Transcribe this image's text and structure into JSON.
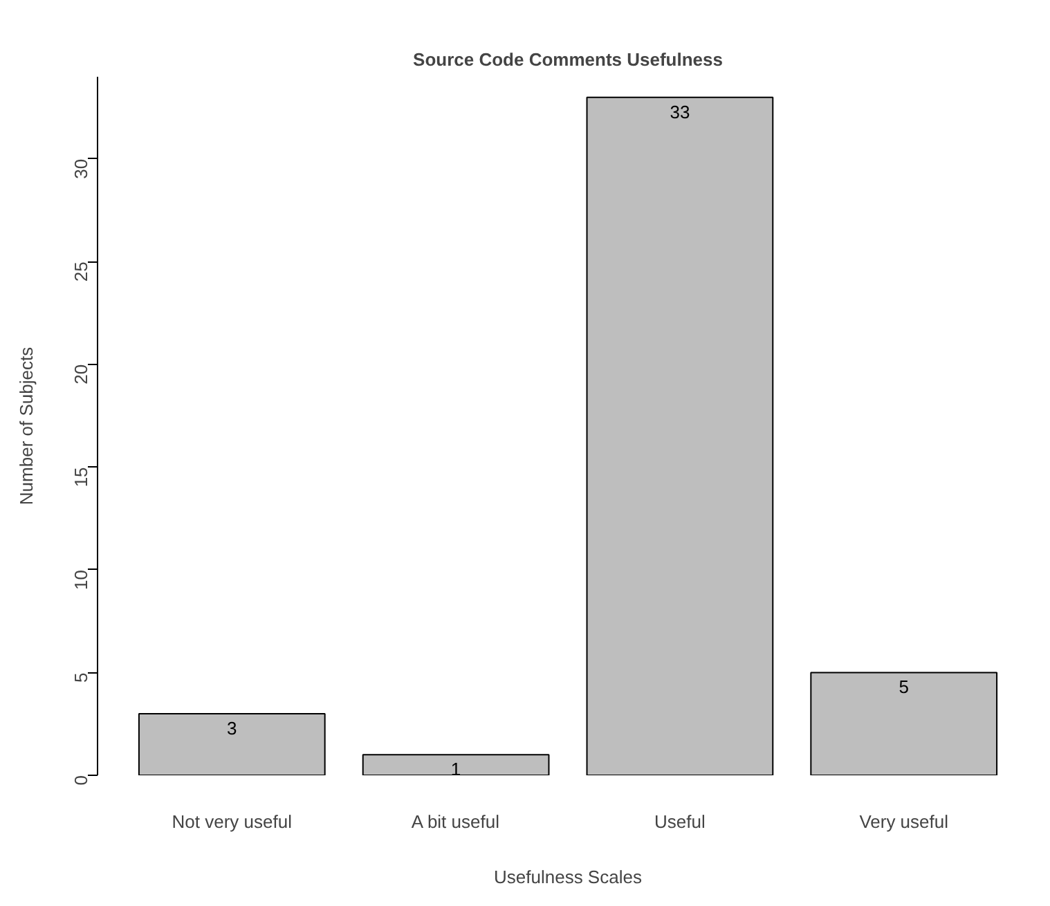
{
  "chart_data": {
    "type": "bar",
    "title": "Source Code Comments Usefulness",
    "xlabel": "Usefulness Scales",
    "ylabel": "Number of Subjects",
    "categories": [
      "Not very useful",
      "A bit useful",
      "Useful",
      "Very useful"
    ],
    "values": [
      3,
      1,
      33,
      5
    ],
    "color": "#bebebe",
    "data_labels": true,
    "ylim": [
      0,
      34
    ],
    "yticks": [
      0,
      5,
      10,
      15,
      20,
      25,
      30
    ],
    "grid": false
  }
}
